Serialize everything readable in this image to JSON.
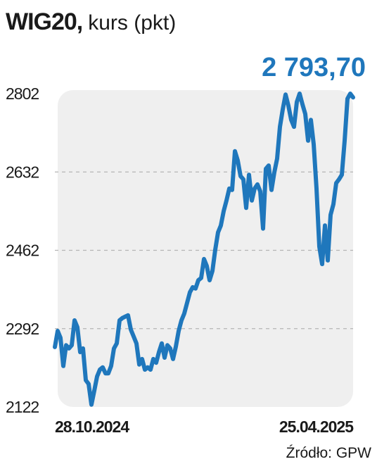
{
  "chart_data": {
    "type": "line",
    "title": "WIG20,",
    "title_unit": "kurs (pkt)",
    "source": "Źródło: GPW",
    "categories": [
      "28.10.2024",
      null,
      null,
      null,
      null,
      null,
      null,
      null,
      null,
      null,
      null,
      null,
      null,
      null,
      null,
      null,
      null,
      null,
      null,
      null,
      null,
      null,
      null,
      null,
      null,
      null,
      null,
      null,
      null,
      null,
      null,
      null,
      null,
      null,
      null,
      null,
      null,
      null,
      null,
      null,
      null,
      null,
      null,
      null,
      null,
      null,
      null,
      null,
      null,
      null,
      null,
      null,
      null,
      null,
      null,
      null,
      null,
      null,
      null,
      null,
      null,
      null,
      null,
      null,
      null,
      null,
      null,
      null,
      null,
      null,
      null,
      null,
      null,
      null,
      null,
      null,
      null,
      null,
      null,
      null,
      null,
      null,
      null,
      null,
      null,
      null,
      null,
      null,
      null,
      null,
      null,
      null,
      null,
      null,
      null,
      null,
      null,
      null,
      null,
      null,
      null,
      null,
      null,
      null,
      null,
      null,
      "25.04.2025"
    ],
    "series": [
      {
        "name": "WIG20",
        "color": "#1f77bc",
        "values": [
          2252,
          2287,
          2272,
          2211,
          2256,
          2249,
          2256,
          2310,
          2295,
          2241,
          2249,
          2180,
          2172,
          2127,
          2157,
          2188,
          2203,
          2208,
          2195,
          2195,
          2211,
          2249,
          2260,
          2310,
          2315,
          2318,
          2321,
          2290,
          2275,
          2260,
          2214,
          2226,
          2203,
          2208,
          2203,
          2226,
          2218,
          2241,
          2260,
          2229,
          2256,
          2249,
          2226,
          2253,
          2287,
          2310,
          2325,
          2348,
          2371,
          2382,
          2379,
          2397,
          2402,
          2443,
          2428,
          2397,
          2417,
          2463,
          2501,
          2516,
          2547,
          2570,
          2596,
          2593,
          2677,
          2657,
          2623,
          2616,
          2554,
          2626,
          2570,
          2596,
          2605,
          2590,
          2509,
          2639,
          2646,
          2593,
          2631,
          2661,
          2730,
          2768,
          2800,
          2776,
          2745,
          2730,
          2784,
          2802,
          2779,
          2758,
          2700,
          2745,
          2692,
          2596,
          2470,
          2432,
          2516,
          2440,
          2539,
          2562,
          2608,
          2616,
          2626,
          2700,
          2791,
          2802,
          2793.7
        ],
        "value_labels": [
          null,
          null,
          null,
          null,
          null,
          null,
          null,
          null,
          null,
          null,
          null,
          null,
          null,
          null,
          null,
          null,
          null,
          null,
          null,
          null,
          null,
          null,
          null,
          null,
          null,
          null,
          null,
          null,
          null,
          null,
          null,
          null,
          null,
          null,
          null,
          null,
          null,
          null,
          null,
          null,
          null,
          null,
          null,
          null,
          null,
          null,
          null,
          null,
          null,
          null,
          null,
          null,
          null,
          null,
          null,
          null,
          null,
          null,
          null,
          null,
          null,
          null,
          null,
          null,
          null,
          null,
          null,
          null,
          null,
          null,
          null,
          null,
          null,
          null,
          null,
          null,
          null,
          null,
          null,
          null,
          null,
          null,
          null,
          null,
          null,
          null,
          null,
          null,
          null,
          null,
          null,
          null,
          null,
          null,
          null,
          null,
          null,
          null,
          null,
          null,
          null,
          null,
          null,
          null,
          null,
          null,
          "2 793,70"
        ]
      }
    ],
    "ylim": [
      2122,
      2802
    ],
    "yticks": [
      2122,
      2292,
      2462,
      2632,
      2802
    ],
    "grid": true
  }
}
